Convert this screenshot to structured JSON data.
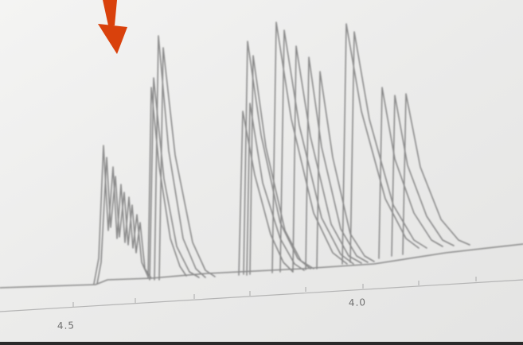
{
  "labels": {
    "left": "4.5",
    "right": "4.0"
  },
  "colors": {
    "paper": "#e8e8e6",
    "trace": "#8a8a8a",
    "arrow": "#d9410c"
  },
  "icons": {
    "arrow": "down-arrow-icon"
  }
}
